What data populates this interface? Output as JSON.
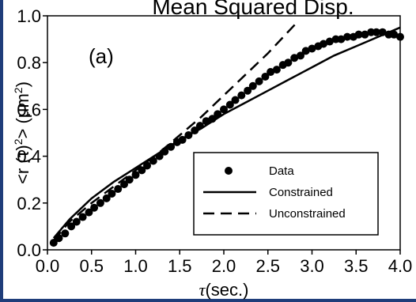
{
  "chart_data": {
    "type": "scatter",
    "title": "Mean Squared Disp.",
    "panel_label": "(a)",
    "xlabel_symbol": "τ",
    "xlabel_text": "(sec.)",
    "ylabel_prefix": "<r (τ)",
    "ylabel_exp": "2",
    "ylabel_mid": ">  (μm",
    "ylabel_unit_exp": "2",
    "ylabel_suffix": ")",
    "xlim": [
      0.0,
      4.0
    ],
    "ylim": [
      0.0,
      1.0
    ],
    "xticks": [
      "0.0",
      "0.5",
      "1.0",
      "1.5",
      "2.0",
      "2.5",
      "3.0",
      "3.5",
      "4.0"
    ],
    "yticks": [
      "0.0",
      "0.2",
      "0.4",
      "0.6",
      "0.8",
      "1.0"
    ],
    "legend": {
      "placement": "bottom-right",
      "entries": [
        "Data",
        "Constrained",
        "Unconstrained"
      ]
    },
    "series": [
      {
        "name": "Data",
        "style": "markers",
        "x": [
          0.07,
          0.13,
          0.2,
          0.27,
          0.33,
          0.4,
          0.47,
          0.53,
          0.6,
          0.67,
          0.73,
          0.8,
          0.87,
          0.93,
          1.0,
          1.07,
          1.13,
          1.2,
          1.27,
          1.33,
          1.4,
          1.47,
          1.53,
          1.6,
          1.67,
          1.73,
          1.8,
          1.87,
          1.93,
          2.0,
          2.07,
          2.13,
          2.2,
          2.27,
          2.33,
          2.4,
          2.47,
          2.53,
          2.6,
          2.67,
          2.73,
          2.8,
          2.87,
          2.93,
          3.0,
          3.07,
          3.13,
          3.2,
          3.27,
          3.33,
          3.4,
          3.47,
          3.53,
          3.6,
          3.67,
          3.73,
          3.8,
          3.87,
          3.93,
          4.0
        ],
        "y": [
          0.03,
          0.05,
          0.07,
          0.1,
          0.12,
          0.14,
          0.16,
          0.18,
          0.2,
          0.22,
          0.24,
          0.26,
          0.28,
          0.3,
          0.32,
          0.34,
          0.36,
          0.38,
          0.4,
          0.42,
          0.44,
          0.46,
          0.47,
          0.49,
          0.51,
          0.53,
          0.55,
          0.56,
          0.58,
          0.6,
          0.62,
          0.64,
          0.66,
          0.68,
          0.7,
          0.72,
          0.74,
          0.76,
          0.77,
          0.79,
          0.8,
          0.82,
          0.83,
          0.85,
          0.86,
          0.87,
          0.88,
          0.89,
          0.9,
          0.9,
          0.91,
          0.91,
          0.92,
          0.92,
          0.93,
          0.93,
          0.93,
          0.92,
          0.92,
          0.91
        ]
      },
      {
        "name": "Constrained",
        "style": "solid",
        "x": [
          0.07,
          0.25,
          0.5,
          0.75,
          1.0,
          1.25,
          1.5,
          1.75,
          2.0,
          2.25,
          2.5,
          2.75,
          3.0,
          3.25,
          3.5,
          3.75,
          4.0
        ],
        "y": [
          0.05,
          0.13,
          0.22,
          0.29,
          0.35,
          0.41,
          0.47,
          0.52,
          0.58,
          0.63,
          0.68,
          0.73,
          0.78,
          0.83,
          0.87,
          0.91,
          0.95
        ]
      },
      {
        "name": "Unconstrained",
        "style": "dashed",
        "x": [
          0.07,
          0.25,
          0.5,
          0.75,
          1.0,
          1.25,
          1.5,
          1.75,
          2.0,
          2.25,
          2.5,
          2.75,
          2.85
        ],
        "y": [
          0.04,
          0.12,
          0.2,
          0.27,
          0.34,
          0.41,
          0.49,
          0.57,
          0.66,
          0.75,
          0.84,
          0.94,
          0.98
        ]
      }
    ]
  }
}
